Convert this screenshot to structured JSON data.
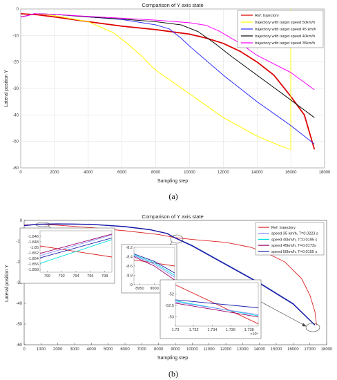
{
  "chart_data": [
    {
      "type": "line",
      "caption": "(a)",
      "title": "Comparison of Y axis state",
      "xlabel": "Sampling step",
      "ylabel": "Lateral position Y",
      "xlim": [
        0,
        18000
      ],
      "ylim": [
        -60,
        0
      ],
      "xticks": [
        0,
        2000,
        4000,
        6000,
        8000,
        10000,
        12000,
        14000,
        16000,
        18000
      ],
      "yticks": [
        0,
        -10,
        -20,
        -30,
        -40,
        -50,
        -60
      ],
      "grid": true,
      "legend_position": "top-right",
      "series": [
        {
          "name": "Ref. trajectory",
          "color": "#dd0000",
          "width": 1.8,
          "points": [
            [
              0,
              -1.8
            ],
            [
              1000,
              -2.2
            ],
            [
              2000,
              -3
            ],
            [
              4000,
              -4.8
            ],
            [
              6000,
              -6.5
            ],
            [
              8000,
              -7.8
            ],
            [
              10000,
              -9.5
            ],
            [
              11000,
              -11
            ],
            [
              12000,
              -13
            ],
            [
              13000,
              -16
            ],
            [
              14000,
              -20
            ],
            [
              15000,
              -25
            ],
            [
              16000,
              -33
            ],
            [
              16800,
              -40
            ],
            [
              17400,
              -53
            ]
          ]
        },
        {
          "name": "trajectory with target speed 50km/h",
          "color": "#ffff00",
          "width": 1,
          "points": [
            [
              0,
              -3
            ],
            [
              400,
              -2.5
            ],
            [
              800,
              -1.8
            ],
            [
              2000,
              -2.5
            ],
            [
              4000,
              -4.8
            ],
            [
              5500,
              -9
            ],
            [
              6500,
              -14
            ],
            [
              7200,
              -18
            ],
            [
              7800,
              -22
            ],
            [
              8200,
              -24
            ],
            [
              10000,
              -32
            ],
            [
              12000,
              -41
            ],
            [
              14000,
              -48
            ],
            [
              15500,
              -52
            ],
            [
              16000,
              -53
            ],
            [
              16000,
              0
            ]
          ]
        },
        {
          "name": "trajectory with target speed 45 km/h",
          "color": "#3333ff",
          "width": 1,
          "points": [
            [
              0,
              -3
            ],
            [
              400,
              -2.5
            ],
            [
              800,
              -1.8
            ],
            [
              2000,
              -2
            ],
            [
              4000,
              -3
            ],
            [
              6000,
              -4
            ],
            [
              8000,
              -6
            ],
            [
              8800,
              -7.5
            ],
            [
              9500,
              -11
            ],
            [
              10000,
              -14
            ],
            [
              12000,
              -25
            ],
            [
              14000,
              -35
            ],
            [
              16000,
              -44
            ],
            [
              17400,
              -51
            ]
          ]
        },
        {
          "name": "trajectory with target speed 40km/h",
          "color": "#111111",
          "width": 1,
          "points": [
            [
              0,
              -3
            ],
            [
              400,
              -2.5
            ],
            [
              800,
              -1.8
            ],
            [
              2000,
              -2
            ],
            [
              4000,
              -3
            ],
            [
              6000,
              -3.8
            ],
            [
              8000,
              -4.8
            ],
            [
              9500,
              -6
            ],
            [
              10500,
              -8.5
            ],
            [
              11500,
              -13
            ],
            [
              12500,
              -18
            ],
            [
              14000,
              -25
            ],
            [
              15500,
              -32
            ],
            [
              17400,
              -41
            ]
          ]
        },
        {
          "name": "trajectory with target speed 35km/h",
          "color": "#ff00ff",
          "width": 1,
          "points": [
            [
              0,
              -3
            ],
            [
              400,
              -2.5
            ],
            [
              800,
              -1.8
            ],
            [
              2000,
              -2
            ],
            [
              4000,
              -2.8
            ],
            [
              6000,
              -3.5
            ],
            [
              8000,
              -4.2
            ],
            [
              10000,
              -5.2
            ],
            [
              11000,
              -6.2
            ],
            [
              11800,
              -8.5
            ],
            [
              13000,
              -13
            ],
            [
              14000,
              -17.5
            ],
            [
              16000,
              -24
            ],
            [
              17400,
              -30.5
            ]
          ]
        }
      ]
    },
    {
      "type": "line",
      "caption": "(b)",
      "title": "Comparison of Y axis state",
      "xlabel": "Sampling step",
      "ylabel": "Lateral position Y",
      "xlim": [
        0,
        18000
      ],
      "ylim": [
        -60,
        0
      ],
      "xticks": [
        0,
        1000,
        2000,
        3000,
        4000,
        5000,
        6000,
        7000,
        8000,
        9000,
        10000,
        11000,
        12000,
        13000,
        14000,
        15000,
        16000,
        17000,
        18000
      ],
      "yticks": [
        0,
        -10,
        -20,
        -30,
        -40,
        -50,
        -60
      ],
      "grid": false,
      "legend_position": "top-right",
      "series": [
        {
          "name": "Ref. trajectory",
          "color": "#dd2222",
          "width": 0.9,
          "points": [
            [
              0,
              -2.2
            ],
            [
              1000,
              -1.85
            ],
            [
              2000,
              -2.3
            ],
            [
              4000,
              -3.5
            ],
            [
              6000,
              -5
            ],
            [
              8000,
              -6.8
            ],
            [
              9000,
              -8.3
            ],
            [
              10000,
              -9.2
            ],
            [
              12000,
              -10.6
            ],
            [
              13500,
              -13
            ],
            [
              14500,
              -16
            ],
            [
              15500,
              -20
            ],
            [
              16500,
              -28
            ],
            [
              17000,
              -36
            ],
            [
              17300,
              -44
            ],
            [
              17400,
              -50.5
            ]
          ]
        },
        {
          "name": "speed 35 km/h, T=0.0223 s",
          "color": "#8888ff",
          "width": 1,
          "points": [
            [
              0,
              -2.5
            ],
            [
              800,
              -1.85
            ],
            [
              2000,
              -1.7
            ],
            [
              4000,
              -1.9
            ],
            [
              6000,
              -3
            ],
            [
              7500,
              -4.5
            ],
            [
              8500,
              -6.3
            ],
            [
              9000,
              -8.4
            ],
            [
              10000,
              -12
            ],
            [
              12000,
              -21
            ],
            [
              14000,
              -30
            ],
            [
              16000,
              -40
            ],
            [
              17300,
              -50.5
            ]
          ]
        },
        {
          "name": "speed 40km/h, T=0.0195 s",
          "color": "#00dddd",
          "width": 1,
          "points": [
            [
              0,
              -2.5
            ],
            [
              800,
              -1.85
            ],
            [
              2000,
              -1.7
            ],
            [
              4000,
              -1.9
            ],
            [
              6000,
              -3
            ],
            [
              7500,
              -4.5
            ],
            [
              8500,
              -6.3
            ],
            [
              9000,
              -8.45
            ],
            [
              10000,
              -12.1
            ],
            [
              12000,
              -21.1
            ],
            [
              14000,
              -30.1
            ],
            [
              16000,
              -40.1
            ],
            [
              17300,
              -50.5
            ]
          ]
        },
        {
          "name": "speed 45km/h, T=0.0173s",
          "color": "#990066",
          "width": 1,
          "points": [
            [
              0,
              -2.5
            ],
            [
              800,
              -1.85
            ],
            [
              2000,
              -1.7
            ],
            [
              4000,
              -1.9
            ],
            [
              6000,
              -3
            ],
            [
              7500,
              -4.5
            ],
            [
              8500,
              -6.3
            ],
            [
              9000,
              -8.5
            ],
            [
              10000,
              -12.2
            ],
            [
              12000,
              -21.2
            ],
            [
              14000,
              -30.2
            ],
            [
              16000,
              -40.2
            ],
            [
              17300,
              -50.5
            ]
          ]
        },
        {
          "name": "speed 50km/h, T=0.0155 s",
          "color": "#1a1aaa",
          "width": 1.4,
          "points": [
            [
              0,
              -2.5
            ],
            [
              800,
              -1.85
            ],
            [
              2000,
              -1.7
            ],
            [
              4000,
              -1.9
            ],
            [
              6000,
              -3
            ],
            [
              7500,
              -4.5
            ],
            [
              8500,
              -6.3
            ],
            [
              9000,
              -8.55
            ],
            [
              10000,
              -12.3
            ],
            [
              12000,
              -21.3
            ],
            [
              14000,
              -30.3
            ],
            [
              16000,
              -40.3
            ],
            [
              17300,
              -50.5
            ]
          ]
        }
      ],
      "insets": [
        {
          "name": "inset-1",
          "xlim": [
            789,
            799
          ],
          "ylim": [
            -1.859,
            -1.844
          ],
          "xticks": [
            790,
            792,
            794,
            796,
            798
          ],
          "yticks": [
            -1.846,
            -1.848,
            -1.85,
            -1.852,
            -1.854,
            -1.856,
            -1.858
          ],
          "ytick_labels": [
            "-1.846",
            "-1.848",
            "-1.85",
            "-1.852",
            "-1.854",
            "-1.856",
            "-1.858"
          ],
          "lines": [
            {
              "color": "#dd2222",
              "points": [
                [
                  789,
                  -1.8495
                ],
                [
                  799,
                  -1.8535
                ]
              ]
            },
            {
              "color": "#8888ff",
              "points": [
                [
                  789,
                  -1.853
                ],
                [
                  799,
                  -1.8455
                ]
              ]
            },
            {
              "color": "#990066",
              "points": [
                [
                  789,
                  -1.8522
                ],
                [
                  799,
                  -1.8452
                ]
              ]
            },
            {
              "color": "#1a1aaa",
              "points": [
                [
                  789,
                  -1.8538
                ],
                [
                  799,
                  -1.8466
                ]
              ]
            },
            {
              "color": "#00dddd",
              "points": [
                [
                  789,
                  -1.8558
                ],
                [
                  799,
                  -1.8472
                ]
              ]
            }
          ]
        },
        {
          "name": "inset-2",
          "xlim": [
            8930,
            9070
          ],
          "ylim": [
            -9,
            -8.2
          ],
          "xticks": [
            8950,
            9000,
            9050
          ],
          "yticks": [
            -8.2,
            -8.4,
            -8.6,
            -8.8,
            -9
          ],
          "ytick_labels": [
            "-8.2",
            "-8.4",
            "-8.6",
            "-8.8",
            "-9"
          ],
          "lines": [
            {
              "color": "#dd2222",
              "points": [
                [
                  8930,
                  -8.47
                ],
                [
                  9070,
                  -8.6
                ]
              ]
            },
            {
              "color": "#1a1aaa",
              "points": [
                [
                  8930,
                  -8.34
                ],
                [
                  9000,
                  -8.5
                ],
                [
                  9070,
                  -8.75
                ]
              ]
            },
            {
              "color": "#00dddd",
              "points": [
                [
                  8930,
                  -8.36
                ],
                [
                  9000,
                  -8.53
                ],
                [
                  9070,
                  -8.8
                ]
              ]
            },
            {
              "color": "#8888ff",
              "points": [
                [
                  8930,
                  -8.38
                ],
                [
                  9000,
                  -8.56
                ],
                [
                  9070,
                  -8.84
                ]
              ]
            },
            {
              "color": "#990066",
              "points": [
                [
                  8930,
                  -8.4
                ],
                [
                  9000,
                  -8.6
                ],
                [
                  9070,
                  -8.9
                ]
              ]
            }
          ]
        },
        {
          "name": "inset-3",
          "xlim": [
            17300,
            17390
          ],
          "ylim": [
            -53.4,
            -51.5
          ],
          "xticks": [
            17300,
            17320,
            17340,
            17360,
            17380
          ],
          "xtick_labels": [
            "1.73",
            "1.732",
            "1.734",
            "1.736",
            "1.738"
          ],
          "x_exponent": "×10⁴",
          "yticks": [
            -52,
            -52.5,
            -53
          ],
          "ytick_labels": [
            "-52",
            "-52.5",
            "-53"
          ],
          "lines": [
            {
              "color": "#dd2222",
              "points": [
                [
                  17300,
                  -51.6
                ],
                [
                  17390,
                  -53.3
                ]
              ]
            },
            {
              "color": "#1a1aaa",
              "points": [
                [
                  17300,
                  -52.25
                ],
                [
                  17390,
                  -52.6
                ]
              ]
            },
            {
              "color": "#00dddd",
              "points": [
                [
                  17300,
                  -52.3
                ],
                [
                  17390,
                  -52.95
                ]
              ]
            },
            {
              "color": "#8888ff",
              "points": [
                [
                  17300,
                  -52.35
                ],
                [
                  17390,
                  -52.9
                ]
              ]
            },
            {
              "color": "#990066",
              "points": [
                [
                  17300,
                  -52.4
                ],
                [
                  17390,
                  -53.0
                ]
              ]
            }
          ]
        }
      ]
    }
  ]
}
